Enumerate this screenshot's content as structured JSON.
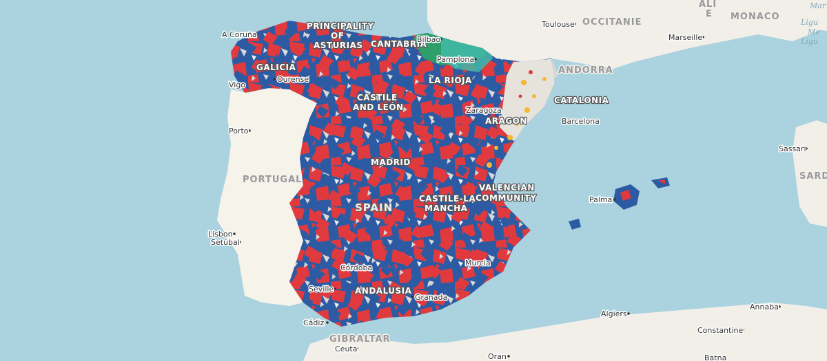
{
  "colors": {
    "water": "#aad3df",
    "land": "#f2efe9",
    "land_alt": "#f6f3ea",
    "red": "#e03a3e",
    "blue": "#2d5ba3",
    "green": "#2e9e6a",
    "teal": "#3fb8a8",
    "yellow": "#f7b731",
    "gray": "#d9d9d9",
    "white": "#f0f0f0"
  },
  "cities": [
    {
      "id": "a-coruna",
      "name": "A Coruña"
    },
    {
      "id": "vigo",
      "name": "Vigo"
    },
    {
      "id": "ourense",
      "name": "Ourense"
    },
    {
      "id": "porto",
      "name": "Porto"
    },
    {
      "id": "lisbon",
      "name": "Lisbon"
    },
    {
      "id": "setubal",
      "name": "Setúbal"
    },
    {
      "id": "bilbao",
      "name": "Bilbao"
    },
    {
      "id": "pamplona",
      "name": "Pamplona"
    },
    {
      "id": "zaragoza",
      "name": "Zaragoza"
    },
    {
      "id": "barcelona",
      "name": "Barcelona"
    },
    {
      "id": "toulouse",
      "name": "Toulouse"
    },
    {
      "id": "marseille",
      "name": "Marseille"
    },
    {
      "id": "palma",
      "name": "Palma"
    },
    {
      "id": "sassari",
      "name": "Sassari"
    },
    {
      "id": "cordoba",
      "name": "Córdoba"
    },
    {
      "id": "seville",
      "name": "Seville"
    },
    {
      "id": "granada",
      "name": "Granada"
    },
    {
      "id": "murcia",
      "name": "Murcia"
    },
    {
      "id": "cadiz",
      "name": "Cádiz"
    },
    {
      "id": "ceuta",
      "name": "Ceuta"
    },
    {
      "id": "oran",
      "name": "Oran"
    },
    {
      "id": "algiers",
      "name": "Algiers"
    },
    {
      "id": "constantine",
      "name": "Constantine"
    },
    {
      "id": "annaba",
      "name": "Annaba"
    }
  ],
  "regions": {
    "principality_line1": "PRINCIPALITY",
    "principality_line2": "OF",
    "principality_line3": "ASTURIAS",
    "cantabria": "CANTABRIA",
    "galicia": "GALICIA",
    "la_rioja": "LA RIOJA",
    "castile_leon_line1": "CASTILE",
    "castile_leon_line2": "AND LEÓN",
    "aragon": "ARAGON",
    "catalonia": "CATALONIA",
    "madrid": "MADRID",
    "valencian_line1": "VALENCIAN",
    "valencian_line2": "COMMUNITY",
    "castile_mancha_line1": "CASTILE-LA",
    "castile_mancha_line2": "MANCHA",
    "andalusia": "ANDALUSIA",
    "occitanie": "OCCITANIE"
  },
  "countries": {
    "portugal": "PORTUGAL",
    "spain": "SPAIN",
    "andorra": "ANDORRA",
    "gibraltar": "GIBRALTAR",
    "monaco": "MONACO",
    "sardinia_partial": "SARDI"
  },
  "partial_labels": {
    "top_right_1": "Mar",
    "top_right_2": "Ligu",
    "top_right_3": "Me",
    "top_right_4": "Ligu",
    "top_ali": "ALI",
    "top_e": "E",
    "bottom_bejaia": "Batna"
  }
}
